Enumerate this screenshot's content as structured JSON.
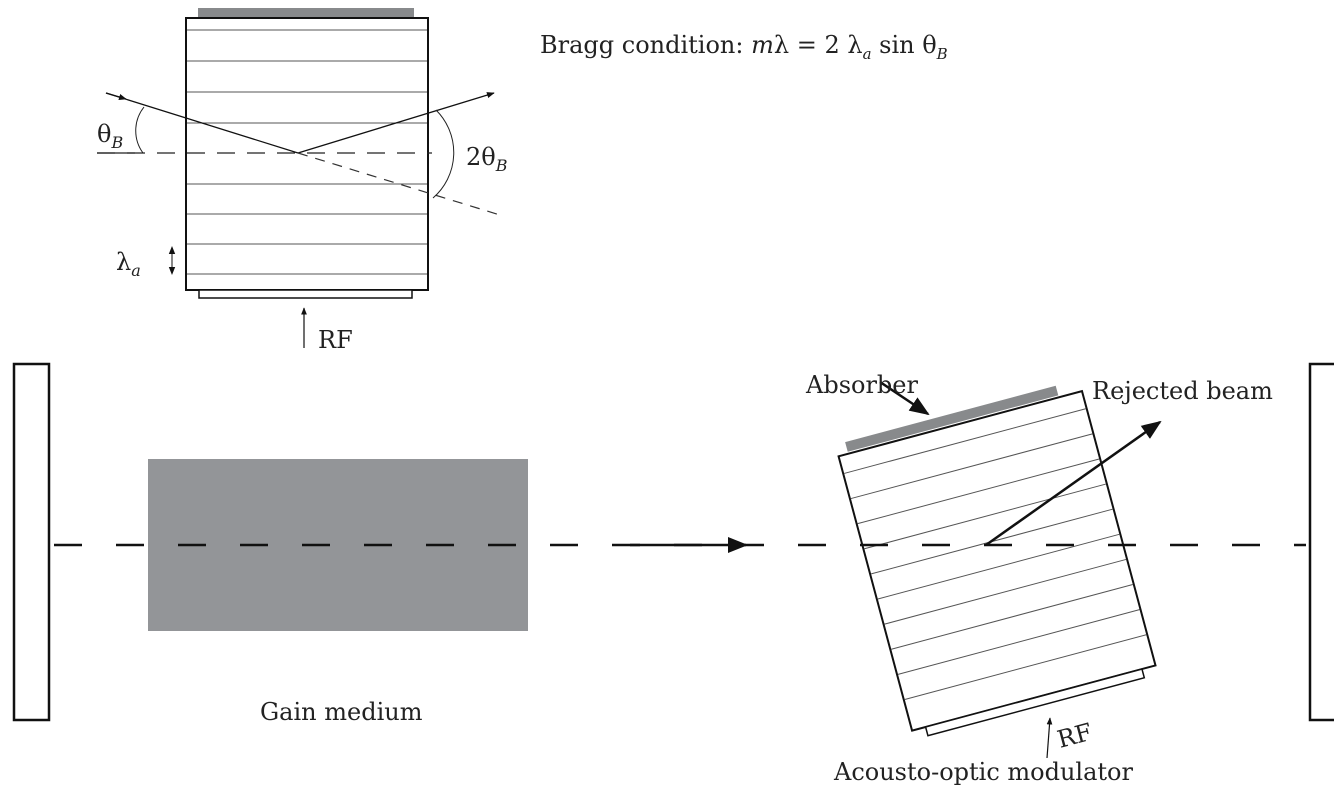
{
  "labels": {
    "bragg_prefix": "Bragg condition: ",
    "bragg_m": "m",
    "bragg_lambda": "λ = 2 λ",
    "bragg_sub_a": "a",
    "bragg_sin": " sin θ",
    "bragg_sub_b": "B",
    "theta": "θ",
    "theta_sub": "B",
    "two_theta": "2θ",
    "two_theta_sub": "B",
    "lambda": "λ",
    "lambda_sub": "a",
    "rf_top": "RF",
    "absorber": "Absorber",
    "rejected_beam": "Rejected beam",
    "rf_bottom": "RF",
    "gain_medium": "Gain medium",
    "aom": "Acousto-optic modulator"
  },
  "colors": {
    "gain_medium_fill": "#939598",
    "absorber_fill": "#888a8c"
  }
}
